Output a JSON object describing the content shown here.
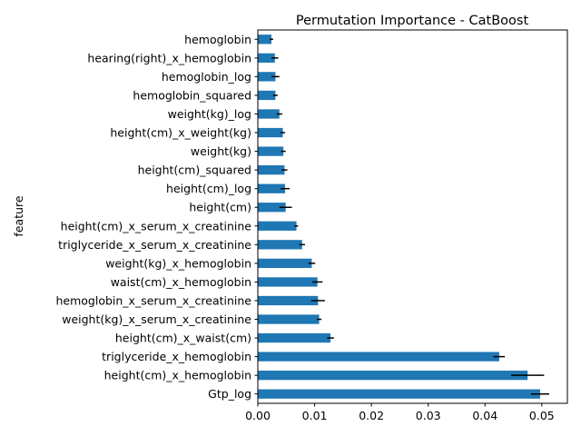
{
  "chart_data": {
    "type": "bar",
    "orientation": "horizontal",
    "title": "Permutation Importance - CatBoost",
    "xlabel": "",
    "ylabel": "feature",
    "xlim": [
      0,
      0.0545
    ],
    "xticks": [
      "0.00",
      "0.01",
      "0.02",
      "0.03",
      "0.04",
      "0.05"
    ],
    "xtick_values": [
      0,
      0.01,
      0.02,
      0.03,
      0.04,
      0.05
    ],
    "categories": [
      "Gtp_log",
      "height(cm)_x_hemoglobin",
      "triglyceride_x_hemoglobin",
      "height(cm)_x_waist(cm)",
      "weight(kg)_x_serum_x_creatinine",
      "hemoglobin_x_serum_x_creatinine",
      "waist(cm)_x_hemoglobin",
      "weight(kg)_x_hemoglobin",
      "triglyceride_x_serum_x_creatinine",
      "height(cm)_x_serum_x_creatinine",
      "height(cm)",
      "height(cm)_log",
      "height(cm)_squared",
      "weight(kg)",
      "height(cm)_x_weight(kg)",
      "weight(kg)_log",
      "hemoglobin_squared",
      "hemoglobin_log",
      "hearing(right)_x_hemoglobin",
      "hemoglobin"
    ],
    "values": [
      0.0497,
      0.0475,
      0.0425,
      0.0128,
      0.0108,
      0.0106,
      0.0105,
      0.0095,
      0.0078,
      0.0068,
      0.0049,
      0.0048,
      0.0047,
      0.0045,
      0.0044,
      0.0038,
      0.0031,
      0.0031,
      0.003,
      0.0024
    ],
    "errors": [
      0.0016,
      0.0029,
      0.001,
      0.0006,
      0.0004,
      0.0012,
      0.0009,
      0.0006,
      0.0005,
      0.0003,
      0.0011,
      0.0008,
      0.0005,
      0.0004,
      0.0004,
      0.0005,
      0.0004,
      0.0007,
      0.0006,
      0.0003
    ],
    "colors": {
      "bar": "#1f77b4",
      "error": "#000000",
      "axis": "#000000"
    },
    "grid": false,
    "legend": "none"
  }
}
